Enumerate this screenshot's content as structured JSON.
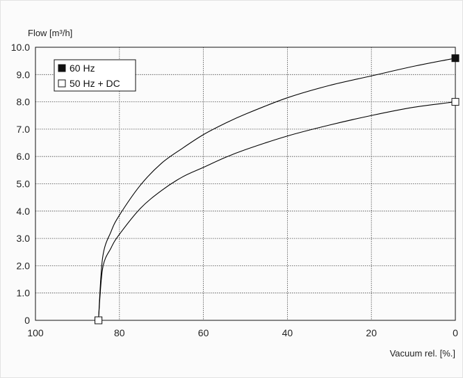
{
  "chart_data": {
    "type": "line",
    "ylabel": "Flow [m³/h]",
    "xlabel": "Vacuum rel. [%.]",
    "xlim": [
      100,
      0
    ],
    "ylim": [
      0,
      10
    ],
    "x_ticks": [
      100,
      80,
      60,
      40,
      20,
      0
    ],
    "y_ticks": [
      0,
      1,
      2,
      3,
      4,
      5,
      6,
      7,
      8,
      9,
      10
    ],
    "y_tick_labels": [
      "0",
      "1.0",
      "2.0",
      "3.0",
      "4.0",
      "5.0",
      "6.0",
      "7.0",
      "8.0",
      "9.0",
      "10.0"
    ],
    "grid": true,
    "legend_position": "top-left",
    "series": [
      {
        "name": "60 Hz",
        "marker": "filled-square",
        "color": "#000000",
        "x": [
          85,
          84,
          82,
          80,
          75,
          70,
          65,
          60,
          55,
          50,
          40,
          30,
          20,
          10,
          0
        ],
        "y": [
          0,
          2.3,
          3.25,
          3.85,
          4.95,
          5.75,
          6.3,
          6.8,
          7.2,
          7.55,
          8.15,
          8.6,
          8.95,
          9.3,
          9.6
        ],
        "markers_at_x": [
          85,
          0
        ]
      },
      {
        "name": "50 Hz + DC",
        "marker": "open-square",
        "color": "#000000",
        "x": [
          85,
          84,
          82,
          80,
          75,
          70,
          65,
          60,
          55,
          50,
          40,
          30,
          20,
          10,
          0
        ],
        "y": [
          0,
          1.9,
          2.65,
          3.15,
          4.1,
          4.75,
          5.25,
          5.6,
          5.95,
          6.25,
          6.75,
          7.15,
          7.5,
          7.8,
          8.0
        ],
        "markers_at_x": [
          85,
          0
        ]
      }
    ]
  }
}
